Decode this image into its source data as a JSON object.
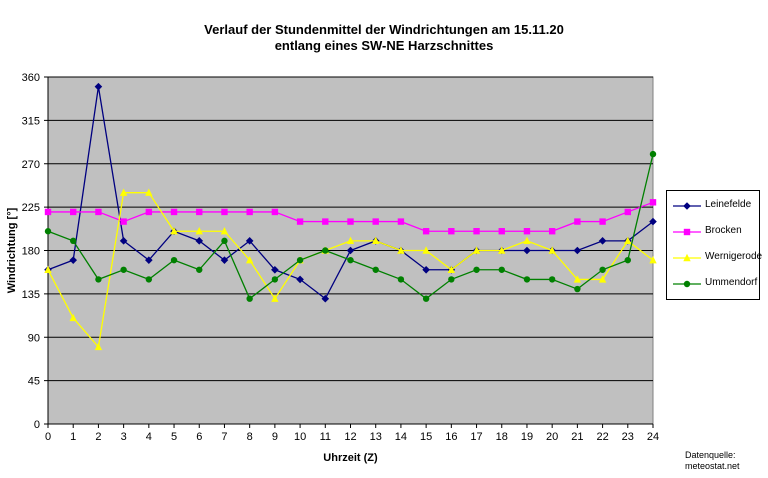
{
  "chart_data": {
    "type": "line",
    "title_line1": "Verlauf der Stundenmittel der Windrichtungen am 15.11.20",
    "title_line2": "entlang eines SW-NE Harzschnittes",
    "xlabel": "Uhrzeit (Z)",
    "ylabel": "Windrichtung [°]",
    "x": [
      0,
      1,
      2,
      3,
      4,
      5,
      6,
      7,
      8,
      9,
      10,
      11,
      12,
      13,
      14,
      15,
      16,
      17,
      18,
      19,
      20,
      21,
      22,
      23,
      24
    ],
    "ylim": [
      0,
      360
    ],
    "yticks": [
      0,
      45,
      90,
      135,
      180,
      225,
      270,
      315,
      360
    ],
    "grid": true,
    "legend_position": "right",
    "plot_background": "#c0c0c0",
    "series": [
      {
        "name": "Leinefelde",
        "color": "#000080",
        "marker": "diamond",
        "values": [
          160,
          170,
          350,
          190,
          170,
          200,
          190,
          170,
          190,
          160,
          150,
          130,
          180,
          190,
          180,
          160,
          160,
          180,
          180,
          180,
          180,
          180,
          190,
          190,
          210
        ]
      },
      {
        "name": "Brocken",
        "color": "#ff00ff",
        "marker": "square",
        "values": [
          220,
          220,
          220,
          210,
          220,
          220,
          220,
          220,
          220,
          220,
          210,
          210,
          210,
          210,
          210,
          200,
          200,
          200,
          200,
          200,
          200,
          210,
          210,
          220,
          230
        ]
      },
      {
        "name": "Wernigerode",
        "color": "#ffff00",
        "marker": "triangle",
        "values": [
          160,
          110,
          80,
          240,
          240,
          200,
          200,
          200,
          170,
          130,
          170,
          180,
          190,
          190,
          180,
          180,
          160,
          180,
          180,
          190,
          180,
          150,
          150,
          190,
          170
        ]
      },
      {
        "name": "Ummendorf",
        "color": "#008000",
        "marker": "circle",
        "values": [
          200,
          190,
          150,
          160,
          150,
          170,
          160,
          190,
          130,
          150,
          170,
          180,
          170,
          160,
          150,
          130,
          150,
          160,
          160,
          150,
          150,
          140,
          160,
          170,
          280
        ]
      }
    ],
    "source_line1": "Datenquelle:",
    "source_line2": "meteostat.net"
  }
}
